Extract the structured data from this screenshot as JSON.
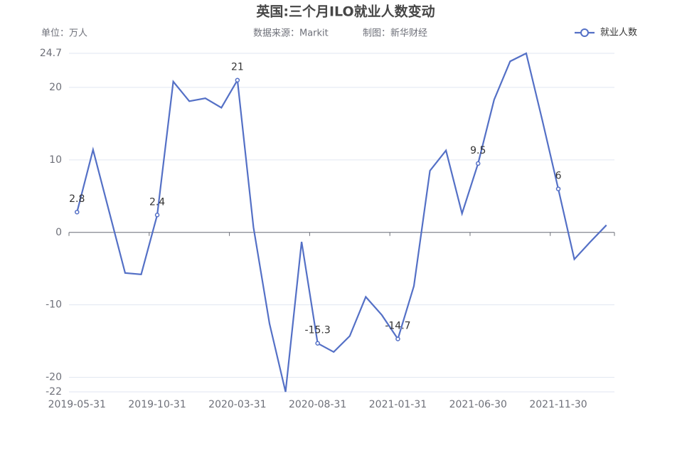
{
  "chart_data": {
    "type": "line",
    "title": "英国:三个月ILO就业人数变动",
    "unit_note": "单位：万人",
    "source": "数据来源：Markit",
    "credit": "制图：新华财经",
    "categories": [
      "2019-05-31",
      null,
      null,
      null,
      null,
      "2019-10-31",
      null,
      null,
      null,
      null,
      "2020-03-31",
      null,
      null,
      null,
      null,
      "2020-08-31",
      null,
      null,
      null,
      null,
      "2021-01-31",
      null,
      null,
      null,
      null,
      "2021-06-30",
      null,
      null,
      null,
      null,
      "2021-11-30",
      null,
      null,
      null
    ],
    "series": [
      {
        "name": "就业人数",
        "color": "#5470c6",
        "values": [
          2.8,
          11.4,
          2.9,
          -5.6,
          -5.8,
          2.4,
          20.8,
          18.1,
          18.5,
          17.2,
          21,
          0.7,
          -12.6,
          -22,
          -1.3,
          -15.3,
          -16.5,
          -14.3,
          -8.9,
          -11.4,
          -14.7,
          -7.4,
          8.5,
          11.3,
          2.6,
          9.5,
          18.3,
          23.6,
          24.7,
          15.5,
          6,
          -3.7,
          -1.3,
          1.0
        ]
      }
    ],
    "ylim": [
      -22,
      24.7
    ],
    "yticks": [
      -22,
      -20,
      -10,
      0,
      10,
      20,
      24.7
    ],
    "grid": true,
    "legend": "top-right"
  }
}
